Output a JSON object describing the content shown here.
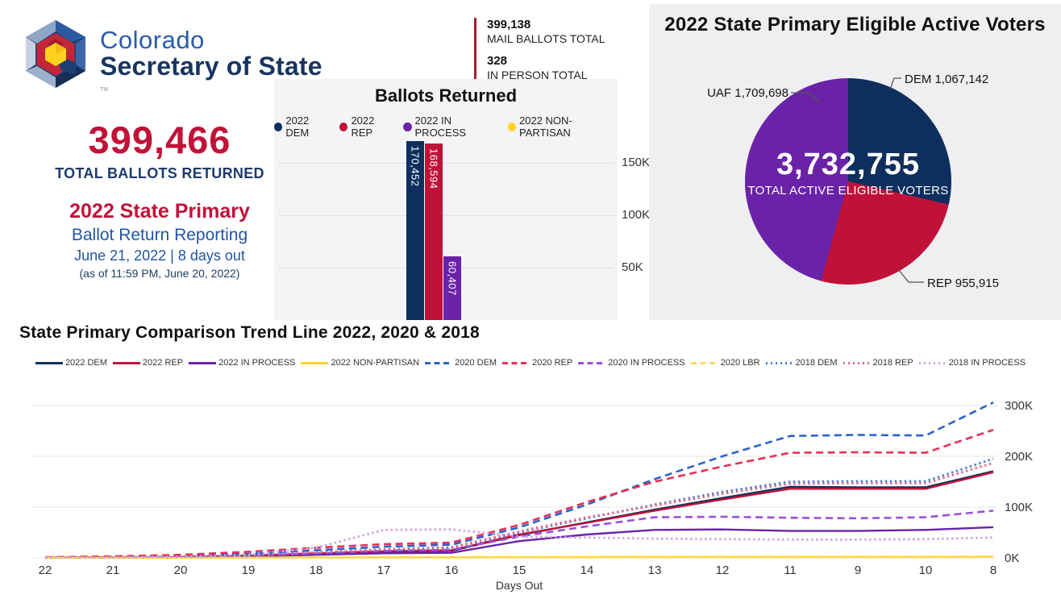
{
  "colors": {
    "navy": "#0e2f5e",
    "crimson": "#c01238",
    "purple": "#6a22a8",
    "gold": "#ffd426",
    "blue_2020": "#2962cc",
    "red_2020": "#e73056",
    "purple_2020": "#9b50d8",
    "yellow_2020": "#ffd95e",
    "blue_2018": "#4a7fd8",
    "pink_2018": "#e06985",
    "lavender_2018": "#c9a2e6",
    "heading_red": "#c11238",
    "heading_navy": "#1d3a6d",
    "royal_blue": "#2255a4",
    "accent_bar": "#a51c30"
  },
  "logo": {
    "line1": "Colorado",
    "line2": "Secretary of State",
    "tm": "TM"
  },
  "left_panel": {
    "total_value": "399,466",
    "total_label": "TOTAL BALLOTS RETURNED",
    "primary_title": "2022 State Primary",
    "primary_subtitle": "Ballot Return Reporting",
    "date_line": "June 21, 2022 | 8 days out",
    "as_of_line": "(as of 11:59 PM, June 20, 2022)"
  },
  "mail_panel": {
    "stats": [
      {
        "value": "399,138",
        "label": "MAIL BALLOTS TOTAL"
      },
      {
        "value": "328",
        "label": "IN PERSON TOTAL"
      }
    ]
  },
  "chart_data": [
    {
      "id": "ballots-returned-bar",
      "type": "bar",
      "title": "Ballots Returned",
      "legend": [
        {
          "label": "2022 DEM",
          "color": "#0e2f5e"
        },
        {
          "label": "2022 REP",
          "color": "#c01238"
        },
        {
          "label": "2022 IN PROCESS",
          "color": "#6a22a8"
        },
        {
          "label": "2022 NON-PARTISAN",
          "color": "#ffd426"
        }
      ],
      "bars": [
        {
          "label": "2022 DEM",
          "value": 170452,
          "display": "170,452",
          "color": "#0e2f5e"
        },
        {
          "label": "2022 REP",
          "value": 168594,
          "display": "168,594",
          "color": "#c01238"
        },
        {
          "label": "2022 IN PROCESS",
          "value": 60407,
          "display": "60,407",
          "color": "#6a22a8"
        }
      ],
      "yticks": [
        {
          "label": "150K",
          "value": 150000
        },
        {
          "label": "100K",
          "value": 100000
        },
        {
          "label": "50K",
          "value": 50000
        }
      ],
      "grid": true,
      "legend_position": "top"
    },
    {
      "id": "eligible-voters-pie",
      "type": "pie",
      "title": "2022 State Primary Eligible Active Voters",
      "slices": [
        {
          "label": "DEM",
          "value": 1067142,
          "display": "DEM 1,067,142",
          "color": "#0e2f5e"
        },
        {
          "label": "REP",
          "value": 955915,
          "display": "REP 955,915",
          "color": "#c01238"
        },
        {
          "label": "UAF",
          "value": 1709698,
          "display": "UAF 1,709,698",
          "color": "#6a22a8"
        }
      ],
      "total": 3732755,
      "center_value": "3,732,755",
      "center_label": "TOTAL ACTIVE ELIGIBLE VOTERS",
      "start_angle": "12 o'clock, clockwise: DEM, REP, UAF"
    },
    {
      "id": "trend-lines",
      "type": "line",
      "title": "State Primary Comparison Trend Line 2022, 2020 & 2018",
      "xlabel": "Days Out",
      "x_categories": [
        "22",
        "21",
        "20",
        "19",
        "18",
        "17",
        "16",
        "15",
        "14",
        "13",
        "12",
        "11",
        "9",
        "10",
        "8"
      ],
      "yticks": [
        {
          "label": "0K",
          "value": 0
        },
        {
          "label": "100K",
          "value": 100000
        },
        {
          "label": "200K",
          "value": 200000
        },
        {
          "label": "300K",
          "value": 300000
        }
      ],
      "ylim": [
        0,
        320000
      ],
      "grid": true,
      "legend_position": "top",
      "series": [
        {
          "name": "2022 DEM",
          "style": "solid",
          "color": "#0e2f5e",
          "values": [
            500,
            1000,
            2000,
            4000,
            8000,
            12000,
            14000,
            45000,
            70000,
            95000,
            118000,
            140000,
            139000,
            139000,
            170452
          ]
        },
        {
          "name": "2022 REP",
          "style": "solid",
          "color": "#c01238",
          "values": [
            500,
            1000,
            2000,
            4500,
            9000,
            13000,
            15000,
            46000,
            69000,
            93000,
            115000,
            136000,
            136000,
            136000,
            168594
          ]
        },
        {
          "name": "2022 IN PROCESS",
          "style": "solid",
          "color": "#6a22a8",
          "values": [
            300,
            700,
            1500,
            3000,
            6000,
            9000,
            10000,
            33000,
            46000,
            55000,
            56000,
            53000,
            53000,
            55000,
            60407
          ]
        },
        {
          "name": "2022 NON-PARTISAN",
          "style": "solid",
          "color": "#ffd426",
          "values": [
            100,
            200,
            400,
            600,
            900,
            1100,
            1200,
            1500,
            1700,
            1900,
            2000,
            2100,
            2200,
            2300,
            2500
          ]
        },
        {
          "name": "2020 DEM",
          "style": "dashed",
          "color": "#2962cc",
          "values": [
            1000,
            2000,
            4000,
            8000,
            15000,
            22000,
            26000,
            60000,
            105000,
            155000,
            200000,
            240000,
            242000,
            241000,
            306000
          ]
        },
        {
          "name": "2020 REP",
          "style": "dashed",
          "color": "#e73056",
          "values": [
            1500,
            3000,
            6000,
            12000,
            20000,
            27000,
            30000,
            65000,
            110000,
            150000,
            180000,
            207000,
            208000,
            207000,
            252000
          ]
        },
        {
          "name": "2020 IN PROCESS",
          "style": "dashed",
          "color": "#9b50d8",
          "values": [
            500,
            1000,
            2000,
            4000,
            9000,
            14000,
            16000,
            42000,
            62000,
            80000,
            81000,
            79000,
            78000,
            80000,
            93000
          ]
        },
        {
          "name": "2020 LBR",
          "style": "dashed",
          "color": "#ffd95e",
          "values": [
            100,
            150,
            200,
            300,
            500,
            600,
            700,
            900,
            1000,
            1100,
            1200,
            1300,
            1400,
            1400,
            1500
          ]
        },
        {
          "name": "2018 DEM",
          "style": "dotted",
          "color": "#4a7fd8",
          "values": [
            500,
            1000,
            2000,
            5000,
            10000,
            16000,
            20000,
            50000,
            78000,
            105000,
            130000,
            150000,
            151000,
            151000,
            195000
          ]
        },
        {
          "name": "2018 REP",
          "style": "dotted",
          "color": "#e06985",
          "values": [
            500,
            1000,
            2000,
            5000,
            11000,
            17000,
            21000,
            52000,
            80000,
            103000,
            126000,
            146000,
            147000,
            147000,
            187000
          ]
        },
        {
          "name": "2018 IN PROCESS",
          "style": "dotted",
          "color": "#c9a2e6",
          "values": [
            500,
            1000,
            2500,
            6000,
            20000,
            55000,
            56000,
            42000,
            40000,
            38000,
            37000,
            36000,
            36000,
            37000,
            40000
          ]
        }
      ]
    }
  ]
}
